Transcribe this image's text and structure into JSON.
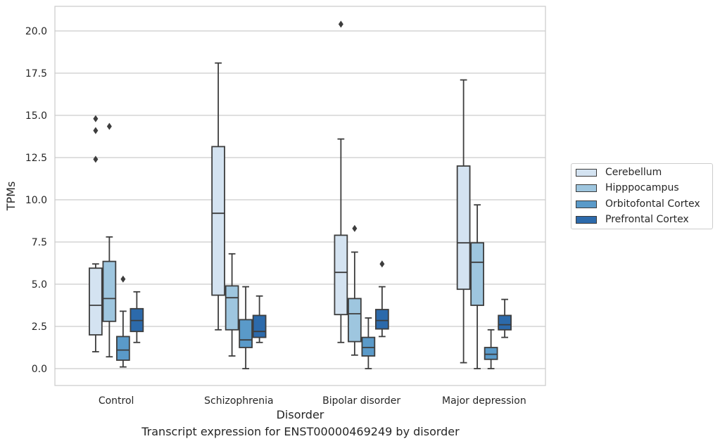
{
  "chart_data": {
    "type": "boxplot",
    "title": "Transcript expression for ENST00000469249 by disorder",
    "xlabel": "Disorder",
    "ylabel": "TPMs",
    "ylim": [
      -1.0,
      21.5
    ],
    "yticks": [
      "0.0",
      "2.5",
      "5.0",
      "7.5",
      "10.0",
      "12.5",
      "15.0",
      "17.5",
      "20.0"
    ],
    "grid": true,
    "legend_position": "right",
    "categories": [
      "Control",
      "Schizophrenia",
      "Bipolar disorder",
      "Major depression"
    ],
    "series": [
      {
        "name": "Cerebellum",
        "color": "#d4e3f1",
        "boxes": [
          {
            "whislo": 1.0,
            "q1": 2.0,
            "med": 3.75,
            "q3": 5.95,
            "whishi": 6.2,
            "fliers": [
              12.4,
              14.1,
              14.8
            ]
          },
          {
            "whislo": 2.3,
            "q1": 4.35,
            "med": 9.2,
            "q3": 13.15,
            "whishi": 18.1,
            "fliers": []
          },
          {
            "whislo": 1.55,
            "q1": 3.2,
            "med": 5.7,
            "q3": 7.9,
            "whishi": 13.6,
            "fliers": [
              20.4
            ]
          },
          {
            "whislo": 0.35,
            "q1": 4.7,
            "med": 7.45,
            "q3": 12.0,
            "whishi": 17.1,
            "fliers": []
          }
        ]
      },
      {
        "name": "Hipppocampus",
        "color": "#9ec6df",
        "boxes": [
          {
            "whislo": 0.7,
            "q1": 2.8,
            "med": 4.15,
            "q3": 6.35,
            "whishi": 7.8,
            "fliers": [
              14.35
            ]
          },
          {
            "whislo": 0.75,
            "q1": 2.3,
            "med": 4.2,
            "q3": 4.9,
            "whishi": 6.8,
            "fliers": []
          },
          {
            "whislo": 0.8,
            "q1": 1.6,
            "med": 3.25,
            "q3": 4.15,
            "whishi": 6.9,
            "fliers": [
              8.3
            ]
          },
          {
            "whislo": 0.0,
            "q1": 3.75,
            "med": 6.3,
            "q3": 7.45,
            "whishi": 9.7,
            "fliers": []
          }
        ]
      },
      {
        "name": "Orbitofontal Cortex",
        "color": "#5a9ac9",
        "boxes": [
          {
            "whislo": 0.1,
            "q1": 0.5,
            "med": 1.1,
            "q3": 1.9,
            "whishi": 3.4,
            "fliers": [
              5.3
            ]
          },
          {
            "whislo": 0.0,
            "q1": 1.25,
            "med": 1.7,
            "q3": 2.9,
            "whishi": 4.85,
            "fliers": []
          },
          {
            "whislo": 0.0,
            "q1": 0.75,
            "med": 1.25,
            "q3": 1.85,
            "whishi": 3.0,
            "fliers": []
          },
          {
            "whislo": 0.0,
            "q1": 0.55,
            "med": 0.85,
            "q3": 1.25,
            "whishi": 2.3,
            "fliers": []
          }
        ]
      },
      {
        "name": "Prefrontal Cortex",
        "color": "#2c6aab",
        "boxes": [
          {
            "whislo": 1.55,
            "q1": 2.2,
            "med": 2.85,
            "q3": 3.55,
            "whishi": 4.55,
            "fliers": []
          },
          {
            "whislo": 1.55,
            "q1": 1.85,
            "med": 2.2,
            "q3": 3.15,
            "whishi": 4.3,
            "fliers": []
          },
          {
            "whislo": 1.9,
            "q1": 2.35,
            "med": 2.85,
            "q3": 3.5,
            "whishi": 4.85,
            "fliers": [
              6.2
            ]
          },
          {
            "whislo": 1.85,
            "q1": 2.3,
            "med": 2.6,
            "q3": 3.15,
            "whishi": 4.1,
            "fliers": []
          }
        ]
      }
    ]
  }
}
